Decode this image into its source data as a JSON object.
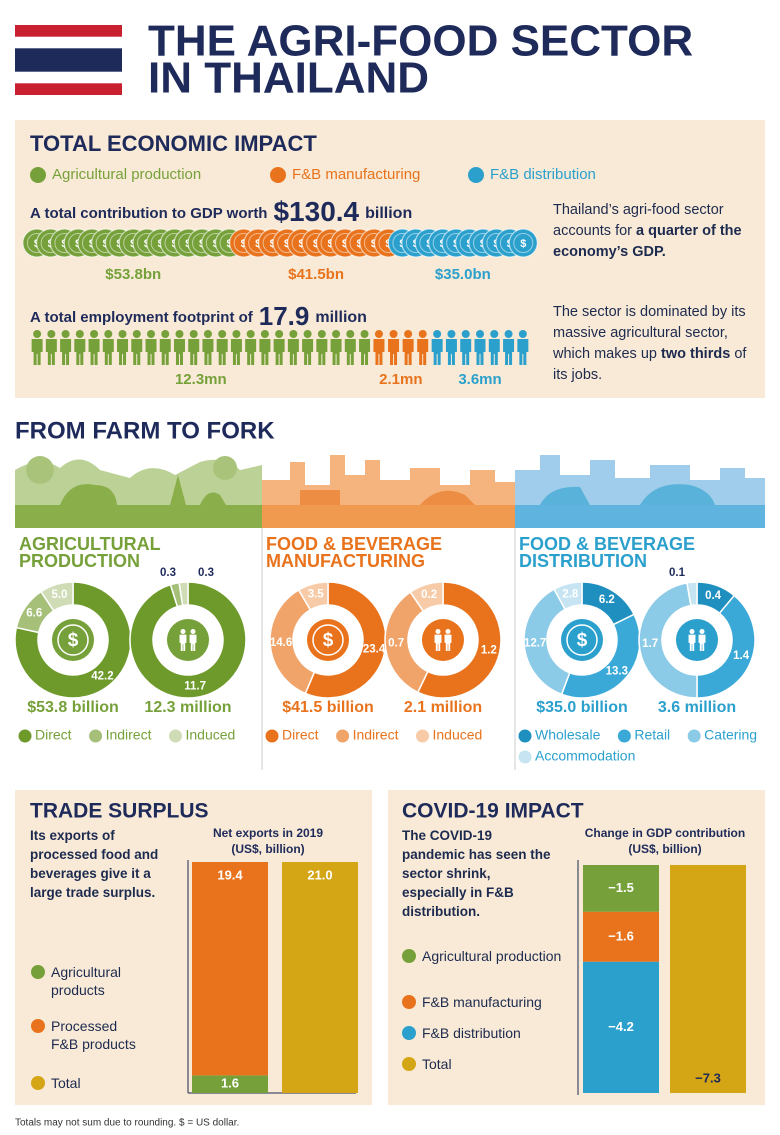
{
  "header": {
    "title_lines": [
      "THE AGRI-FOOD SECTOR",
      "IN THAILAND"
    ]
  },
  "currency_icon": "$",
  "economic_impact": {
    "title": "TOTAL ECONOMIC IMPACT",
    "legend": [
      {
        "name": "Agricultural production",
        "color": "#76a13a"
      },
      {
        "name": "F&B manufacturing",
        "color": "#e8731c"
      },
      {
        "name": "F&B distribution",
        "color": "#2ba0cd"
      }
    ],
    "gdp": {
      "text": "A total contribution to GDP worth",
      "total": "$130.4",
      "unit": "billion",
      "values": [
        53.8,
        41.5,
        35.0
      ],
      "value_labels": [
        "$53.8bn",
        "$41.5bn",
        "$35.0bn"
      ]
    },
    "employment": {
      "text": "A total employment footprint of",
      "total": 17.9,
      "unit": "million",
      "values": [
        12.3,
        2.1,
        3.6
      ],
      "value_labels": [
        "12.3mn",
        "2.1mn",
        "3.6mn"
      ]
    },
    "notes": [
      {
        "text": "Thailand’s agri-food sector accounts for",
        "bold": "a quarter of the economy’s GDP."
      },
      {
        "text": "The sector is dominated by its massive agricultural sector, which makes up",
        "bold": "two thirds",
        "end": "of its jobs."
      }
    ]
  },
  "farm_to_fork": {
    "title": "FROM FARM TO FORK",
    "sectors": [
      {
        "title_lines": [
          "AGRICULTURAL",
          "PRODUCTION"
        ],
        "color": "#76a13a",
        "legend": [
          "Direct",
          "Indirect",
          "Induced"
        ],
        "colors": [
          "#6e9a2c",
          "#a6c07a",
          "#cfdcb5"
        ],
        "gdp": {
          "values": [
            42.2,
            6.6,
            5.0
          ],
          "value_labels": [
            "42.2",
            "6.6",
            "5.0"
          ],
          "total_label": "$53.8 billion"
        },
        "jobs": {
          "values": [
            11.7,
            0.3,
            0.3
          ],
          "value_labels": [
            "11.7",
            "0.3",
            "0.3"
          ],
          "total_label": "12.3 million"
        }
      },
      {
        "title_lines": [
          "FOOD & BEVERAGE",
          "MANUFACTURING"
        ],
        "color": "#e8731c",
        "legend": [
          "Direct",
          "Indirect",
          "Induced"
        ],
        "colors": [
          "#e8731c",
          "#f0a46a",
          "#f7cba7"
        ],
        "gdp": {
          "values": [
            23.4,
            14.6,
            3.5
          ],
          "value_labels": [
            "23.4",
            "14.6",
            "3.5"
          ],
          "total_label": "$41.5 billion"
        },
        "jobs": {
          "values": [
            1.2,
            0.7,
            0.2
          ],
          "value_labels": [
            "1.2",
            "0.7",
            "0.2"
          ],
          "total_label": "2.1 million"
        }
      },
      {
        "title_lines": [
          "FOOD & BEVERAGE",
          "DISTRIBUTION"
        ],
        "color": "#2ba0cd",
        "legend": [
          "Wholesale",
          "Retail",
          "Catering",
          "Accommodation"
        ],
        "colors": [
          "#1f8fbf",
          "#3aa9d8",
          "#8ccbe8",
          "#c6e4f2"
        ],
        "gdp": {
          "values": [
            6.2,
            13.3,
            12.7,
            2.8
          ],
          "value_labels": [
            "6.2",
            "13.3",
            "12.7",
            "2.8"
          ],
          "total_label": "$35.0 billion"
        },
        "jobs": {
          "values": [
            0.4,
            1.4,
            1.7,
            0.1
          ],
          "value_labels": [
            "0.4",
            "1.4",
            "1.7",
            "0.1"
          ],
          "total_label": "3.6 million"
        }
      }
    ]
  },
  "trade": {
    "title": "TRADE SURPLUS",
    "text": "Its exports of processed food and beverages give it a large trade surplus.",
    "chart_title_lines": [
      "Net exports in 2019",
      "(US$, billion)"
    ],
    "stack": [
      {
        "name": "Agricultural products",
        "color": "#76a13a",
        "value": 1.6
      },
      {
        "name": "Processed F&B products",
        "color": "#e8731c",
        "value": 19.4
      }
    ],
    "total": {
      "name": "Total",
      "color": "#d4a514",
      "value": 21,
      "value_label": "21.0"
    }
  },
  "covid": {
    "title": "COVID-19 IMPACT",
    "text": "The COVID-19 pandemic has seen the sector shrink, especially in F&B distribution.",
    "chart_title_lines": [
      "Change in GDP contribution",
      "(US$, billion)"
    ],
    "stack": [
      {
        "name": "Agricultural production",
        "color": "#76a13a",
        "value": -1.5,
        "value_label": "−1.5"
      },
      {
        "name": "F&B manufacturing",
        "color": "#e8731c",
        "value": -1.6,
        "value_label": "−1.6"
      },
      {
        "name": "F&B distribution",
        "color": "#2ba0cd",
        "value": -4.2,
        "value_label": "−4.2"
      }
    ],
    "total": {
      "name": "Total",
      "color": "#d4a514",
      "value": -7.3,
      "value_label": "−7.3"
    }
  },
  "footnote": "Totals may not sum due to rounding. $ = US dollar."
}
